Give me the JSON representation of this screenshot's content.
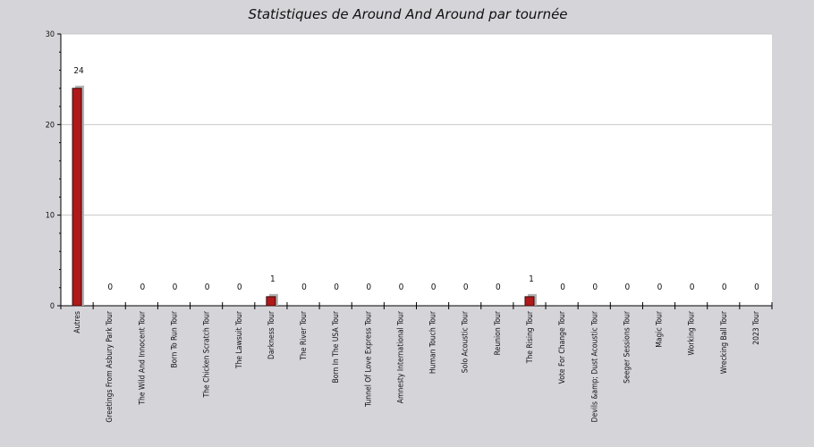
{
  "colors": {
    "page_background": "#d5d4d9",
    "plot_background": "#ffffff",
    "bar_fill": "#b0191a",
    "bar_stroke": "#3a0a0a",
    "bar_shadow": "#b3b3b3",
    "grid": "#c8c8c8"
  },
  "chart_data": {
    "type": "bar",
    "title": "Statistiques de Around And Around par tournée",
    "xlabel": "",
    "ylabel": "",
    "ylim": [
      0,
      30
    ],
    "yticks": [
      0,
      10,
      20,
      30
    ],
    "grid": true,
    "data_labels": true,
    "categories": [
      "Autres",
      "Greetings From Asbury Park Tour",
      "The Wild And Innocent Tour",
      "Born To Run Tour",
      "The Chicken Scratch Tour",
      "The Lawsuit Tour",
      "Darkness Tour",
      "The River Tour",
      "Born In The USA Tour",
      "Tunnel Of Love Express Tour",
      "Amnesty International Tour",
      "Human Touch Tour",
      "Solo Acoustic Tour",
      "Reunion Tour",
      "The Rising Tour",
      "Vote For Change Tour",
      "Devils &amp; Dust Acoustic Tour",
      "Seeger Sessions Tour",
      "Magic Tour",
      "Working Tour",
      "Wrecking Ball Tour",
      "2023 Tour"
    ],
    "values": [
      24,
      0,
      0,
      0,
      0,
      0,
      1,
      0,
      0,
      0,
      0,
      0,
      0,
      0,
      1,
      0,
      0,
      0,
      0,
      0,
      0,
      0
    ]
  }
}
